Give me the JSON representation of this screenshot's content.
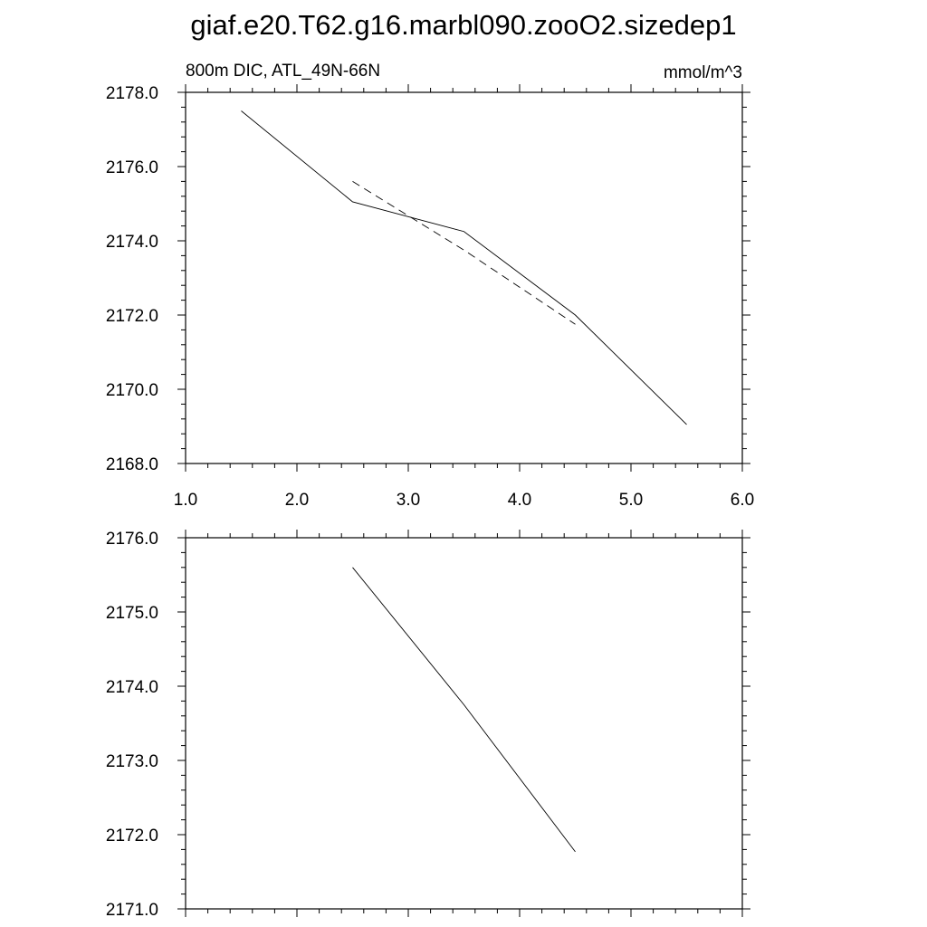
{
  "title": "giaf.e20.T62.g16.marbl090.zooO2.sizedep1",
  "chart_data": [
    {
      "type": "line",
      "left_label": "800m DIC, ATL_49N-66N",
      "right_label": "mmol/m^3",
      "xlim": [
        1.0,
        6.0
      ],
      "ylim": [
        2168.0,
        2178.0
      ],
      "x_ticks": [
        "1.0",
        "2.0",
        "3.0",
        "4.0",
        "5.0",
        "6.0"
      ],
      "y_ticks": [
        "2168.0",
        "2170.0",
        "2172.0",
        "2174.0",
        "2176.0",
        "2178.0"
      ],
      "x_minor_step": 0.2,
      "y_minor_step": 0.4,
      "grid": false,
      "series": [
        {
          "style": "solid",
          "x": [
            1.5,
            2.5,
            3.5,
            4.5,
            5.5
          ],
          "y": [
            2177.5,
            2175.05,
            2174.25,
            2172.0,
            2169.05
          ]
        },
        {
          "style": "dashed",
          "x": [
            2.5,
            3.5,
            4.5
          ],
          "y": [
            2175.6,
            2173.75,
            2171.75
          ]
        }
      ]
    },
    {
      "type": "line",
      "xlim": [
        1.0,
        6.0
      ],
      "ylim": [
        2171.0,
        2176.0
      ],
      "x_ticks": [],
      "y_ticks": [
        "2171.0",
        "2172.0",
        "2173.0",
        "2174.0",
        "2175.0",
        "2176.0"
      ],
      "x_minor_step": 0.2,
      "y_minor_step": 0.2,
      "grid": false,
      "series": [
        {
          "style": "solid",
          "x": [
            2.5,
            3.5,
            4.5
          ],
          "y": [
            2175.6,
            2173.75,
            2171.77
          ]
        }
      ]
    }
  ]
}
